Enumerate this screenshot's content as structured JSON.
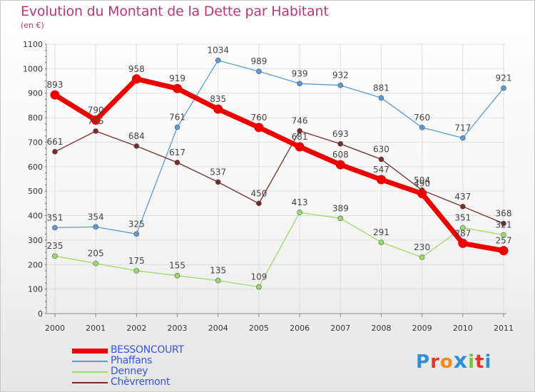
{
  "chart_data": {
    "type": "line",
    "title": "Evolution du Montant de la Dette par Habitant",
    "subtitle": "(en €)",
    "categories": [
      "2000",
      "2001",
      "2002",
      "2003",
      "2004",
      "2005",
      "2006",
      "2007",
      "2008",
      "2009",
      "2010",
      "2011"
    ],
    "ylim": [
      0,
      1100
    ],
    "yticks": [
      0,
      100,
      200,
      300,
      400,
      500,
      600,
      700,
      800,
      900,
      1000,
      1100
    ],
    "grid": true,
    "legend_position": "bottom-left",
    "series": [
      {
        "name": "BESSONCOURT",
        "color": "#ee0000",
        "values": [
          893,
          790,
          958,
          919,
          835,
          760,
          681,
          608,
          547,
          490,
          287,
          257
        ]
      },
      {
        "name": "Phaffans",
        "color": "#5b9bd5",
        "values": [
          351,
          354,
          325,
          761,
          1034,
          989,
          939,
          932,
          881,
          760,
          717,
          921
        ]
      },
      {
        "name": "Denney",
        "color": "#99dd66",
        "values": [
          235,
          205,
          175,
          155,
          135,
          109,
          413,
          389,
          291,
          230,
          351,
          321
        ]
      },
      {
        "name": "Chèvremont",
        "color": "#7a2a2a",
        "values": [
          661,
          745,
          684,
          617,
          537,
          450,
          746,
          693,
          630,
          504,
          437,
          368
        ]
      }
    ]
  },
  "logo": {
    "text": "Proxiti"
  }
}
